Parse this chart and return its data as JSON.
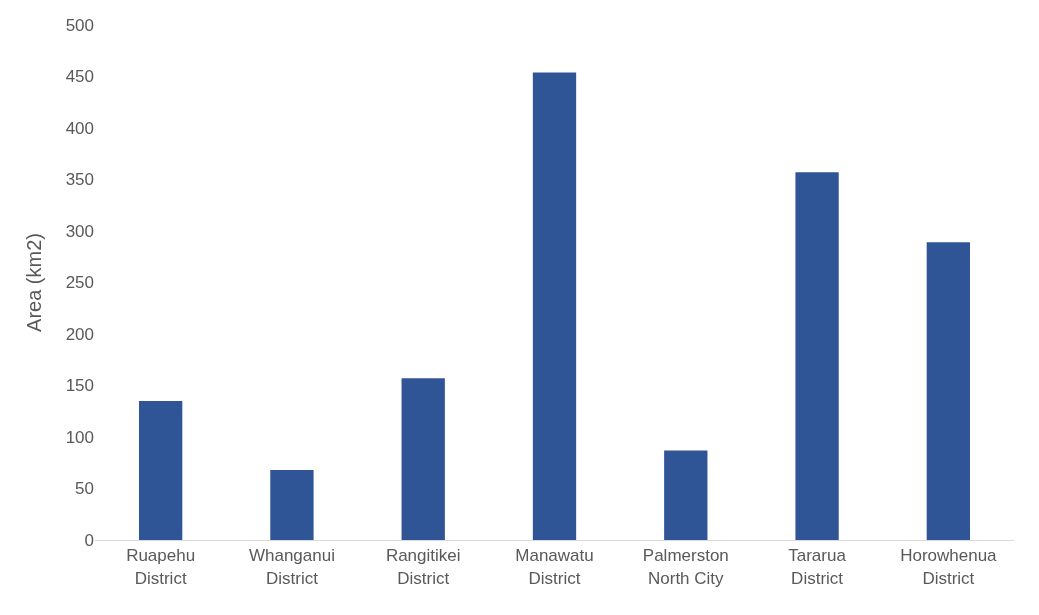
{
  "chart_data": {
    "type": "bar",
    "ylabel": "Area (km2)",
    "categories": [
      "Ruapehu District",
      "Whanganui District",
      "Rangitikei District",
      "Manawatu District",
      "Palmerston North City",
      "Tararua District",
      "Horowhenua District"
    ],
    "values": [
      135,
      68,
      157,
      454,
      87,
      357,
      289
    ],
    "color": "#2f5597",
    "ylim": [
      0,
      500
    ],
    "yticks": [
      0,
      50,
      100,
      150,
      200,
      250,
      300,
      350,
      400,
      450,
      500
    ],
    "grid": false
  }
}
